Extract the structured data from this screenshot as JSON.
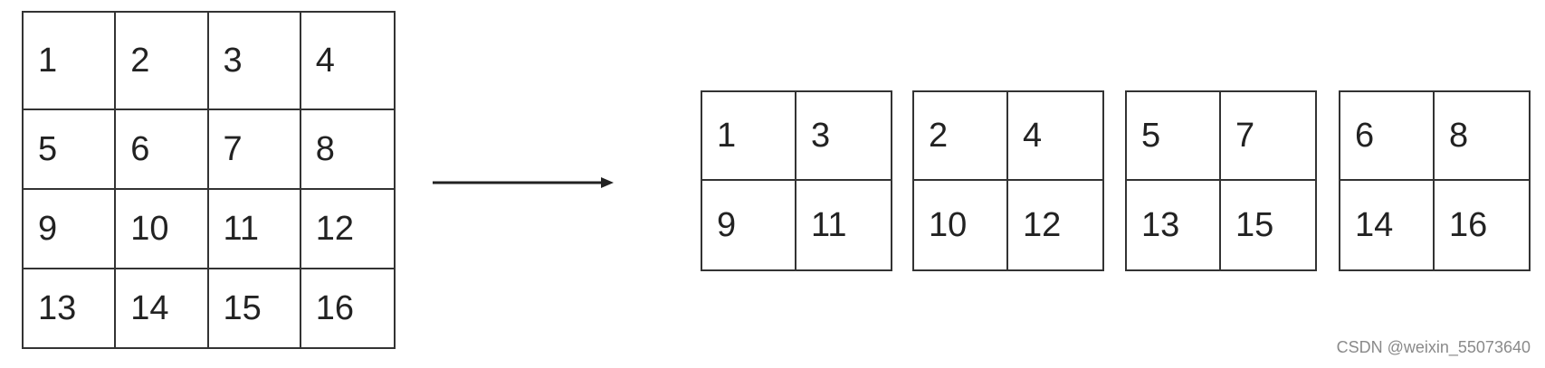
{
  "source_grid": {
    "cells": [
      "1",
      "2",
      "3",
      "4",
      "5",
      "6",
      "7",
      "8",
      "9",
      "10",
      "11",
      "12",
      "13",
      "14",
      "15",
      "16"
    ]
  },
  "result_grids": [
    {
      "cells": [
        "1",
        "3",
        "9",
        "11"
      ]
    },
    {
      "cells": [
        "2",
        "4",
        "10",
        "12"
      ]
    },
    {
      "cells": [
        "5",
        "7",
        "13",
        "15"
      ]
    },
    {
      "cells": [
        "6",
        "8",
        "14",
        "16"
      ]
    }
  ],
  "watermark": "CSDN @weixin_55073640",
  "colors": {
    "line": "#333333",
    "text": "#222222",
    "watermark": "#8a8a8a",
    "background": "#ffffff"
  }
}
